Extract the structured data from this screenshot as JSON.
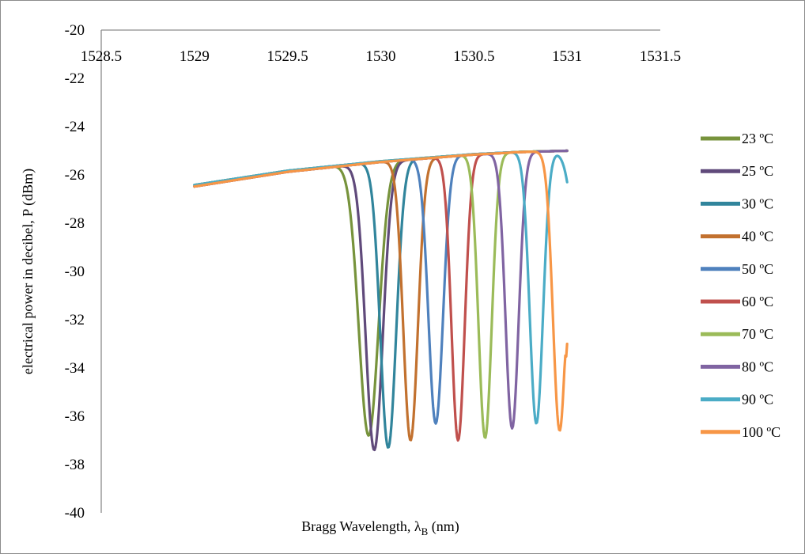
{
  "chart_data": {
    "type": "line",
    "xlabel": "Bragg Wavelength, λ",
    "xlabel_sub": "B",
    "xlabel_unit": " (nm)",
    "ylabel": "electrical power in decibel, P (dBm)",
    "xlim": [
      1528.5,
      1531.5
    ],
    "ylim": [
      -40,
      -20
    ],
    "x_ticks": [
      "1528.5",
      "1529",
      "1529.5",
      "1530",
      "1530.5",
      "1531",
      "1531.5"
    ],
    "y_ticks": [
      "-20",
      "-22",
      "-24",
      "-26",
      "-28",
      "-30",
      "-32",
      "-34",
      "-36",
      "-38",
      "-40"
    ],
    "x_axis_position": "top",
    "grid": false,
    "legend_position": "right",
    "series": [
      {
        "name": "23 ºC",
        "color": "#77933c",
        "dip_center": 1529.935,
        "dip_min": -36.8,
        "dip_width": 0.075,
        "end_value": -25.0
      },
      {
        "name": "25 ºC",
        "color": "#604a7b",
        "dip_center": 1529.965,
        "dip_min": -37.4,
        "dip_width": 0.065,
        "end_value": -25.0
      },
      {
        "name": "30 ºC",
        "color": "#31859c",
        "dip_center": 1530.04,
        "dip_min": -37.3,
        "dip_width": 0.06,
        "end_value": -25.0
      },
      {
        "name": "40 ºC",
        "color": "#c2712f",
        "dip_center": 1530.16,
        "dip_min": -37.0,
        "dip_width": 0.055,
        "end_value": -25.0
      },
      {
        "name": "50 ºC",
        "color": "#4f81bd",
        "dip_center": 1530.295,
        "dip_min": -36.3,
        "dip_width": 0.055,
        "end_value": -25.0
      },
      {
        "name": "60 ºC",
        "color": "#c0504d",
        "dip_center": 1530.415,
        "dip_min": -37.0,
        "dip_width": 0.05,
        "end_value": -25.0
      },
      {
        "name": "70 ºC",
        "color": "#9bbb59",
        "dip_center": 1530.56,
        "dip_min": -36.9,
        "dip_width": 0.05,
        "end_value": -25.0
      },
      {
        "name": "80 ºC",
        "color": "#8064a2",
        "dip_center": 1530.705,
        "dip_min": -36.5,
        "dip_width": 0.05,
        "end_value": -25.0
      },
      {
        "name": "90 ºC",
        "color": "#4bacc6",
        "dip_center": 1530.835,
        "dip_min": -36.3,
        "dip_width": 0.05,
        "end_value": -26.3
      },
      {
        "name": "100 ºC",
        "color": "#f79646",
        "dip_center": 1530.96,
        "dip_min": -36.6,
        "dip_width": 0.05,
        "end_value": -33.0
      }
    ],
    "baseline": {
      "x": [
        1529.0,
        1529.25,
        1529.5,
        1529.75,
        1530.0,
        1530.25,
        1530.5,
        1530.75,
        1531.0
      ],
      "y": [
        -26.45,
        -26.15,
        -25.85,
        -25.65,
        -25.45,
        -25.3,
        -25.15,
        -25.05,
        -25.0
      ]
    },
    "x_end": 1531.0
  }
}
